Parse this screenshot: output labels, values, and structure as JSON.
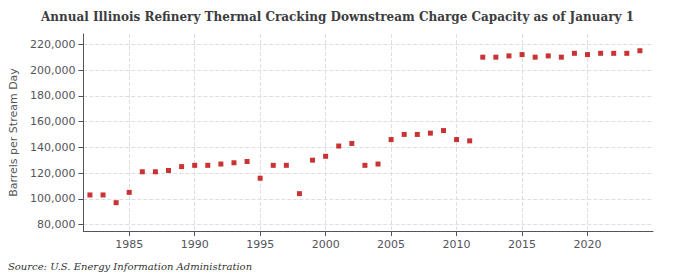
{
  "chart_data": {
    "type": "scatter",
    "title": "Annual Illinois Refinery Thermal Cracking Downstream Charge Capacity as of January 1",
    "ylabel": "Barrels per Stream Day",
    "annotation": "Source: U.S. Energy Information Administration",
    "x": [
      1982,
      1983,
      1984,
      1985,
      1986,
      1987,
      1988,
      1989,
      1990,
      1991,
      1992,
      1993,
      1994,
      1995,
      1996,
      1997,
      1998,
      1999,
      2000,
      2001,
      2002,
      2003,
      2004,
      2005,
      2006,
      2007,
      2008,
      2009,
      2010,
      2011,
      2012,
      2013,
      2014,
      2015,
      2016,
      2017,
      2018,
      2019,
      2020,
      2021,
      2022,
      2023,
      2024
    ],
    "values": [
      103000,
      103000,
      97000,
      105000,
      121000,
      121000,
      122000,
      125000,
      126000,
      126000,
      127000,
      128000,
      129000,
      116000,
      126000,
      126000,
      104000,
      130000,
      133000,
      141000,
      143000,
      126000,
      127000,
      146000,
      150000,
      150000,
      151000,
      153000,
      146000,
      145000,
      210000,
      210000,
      211000,
      212000,
      210000,
      211000,
      210000,
      213000,
      212000,
      213000,
      213000,
      213000,
      215000
    ],
    "color": "#bb0000",
    "marker": "square",
    "xlim": [
      1981.5,
      2025
    ],
    "xticks": [
      1985,
      1990,
      1995,
      2000,
      2005,
      2010,
      2015,
      2020
    ],
    "ylim": [
      75000,
      228000
    ],
    "yticks": [
      {
        "value": 80000,
        "label": "80,000"
      },
      {
        "value": 100000,
        "label": "100,000"
      },
      {
        "value": 120000,
        "label": "120,000"
      },
      {
        "value": 140000,
        "label": "140,000"
      },
      {
        "value": 160000,
        "label": "160,000"
      },
      {
        "value": 180000,
        "label": "180,000"
      },
      {
        "value": 200000,
        "label": "200,000"
      },
      {
        "value": 220000,
        "label": "220,000"
      }
    ],
    "grid": true
  }
}
